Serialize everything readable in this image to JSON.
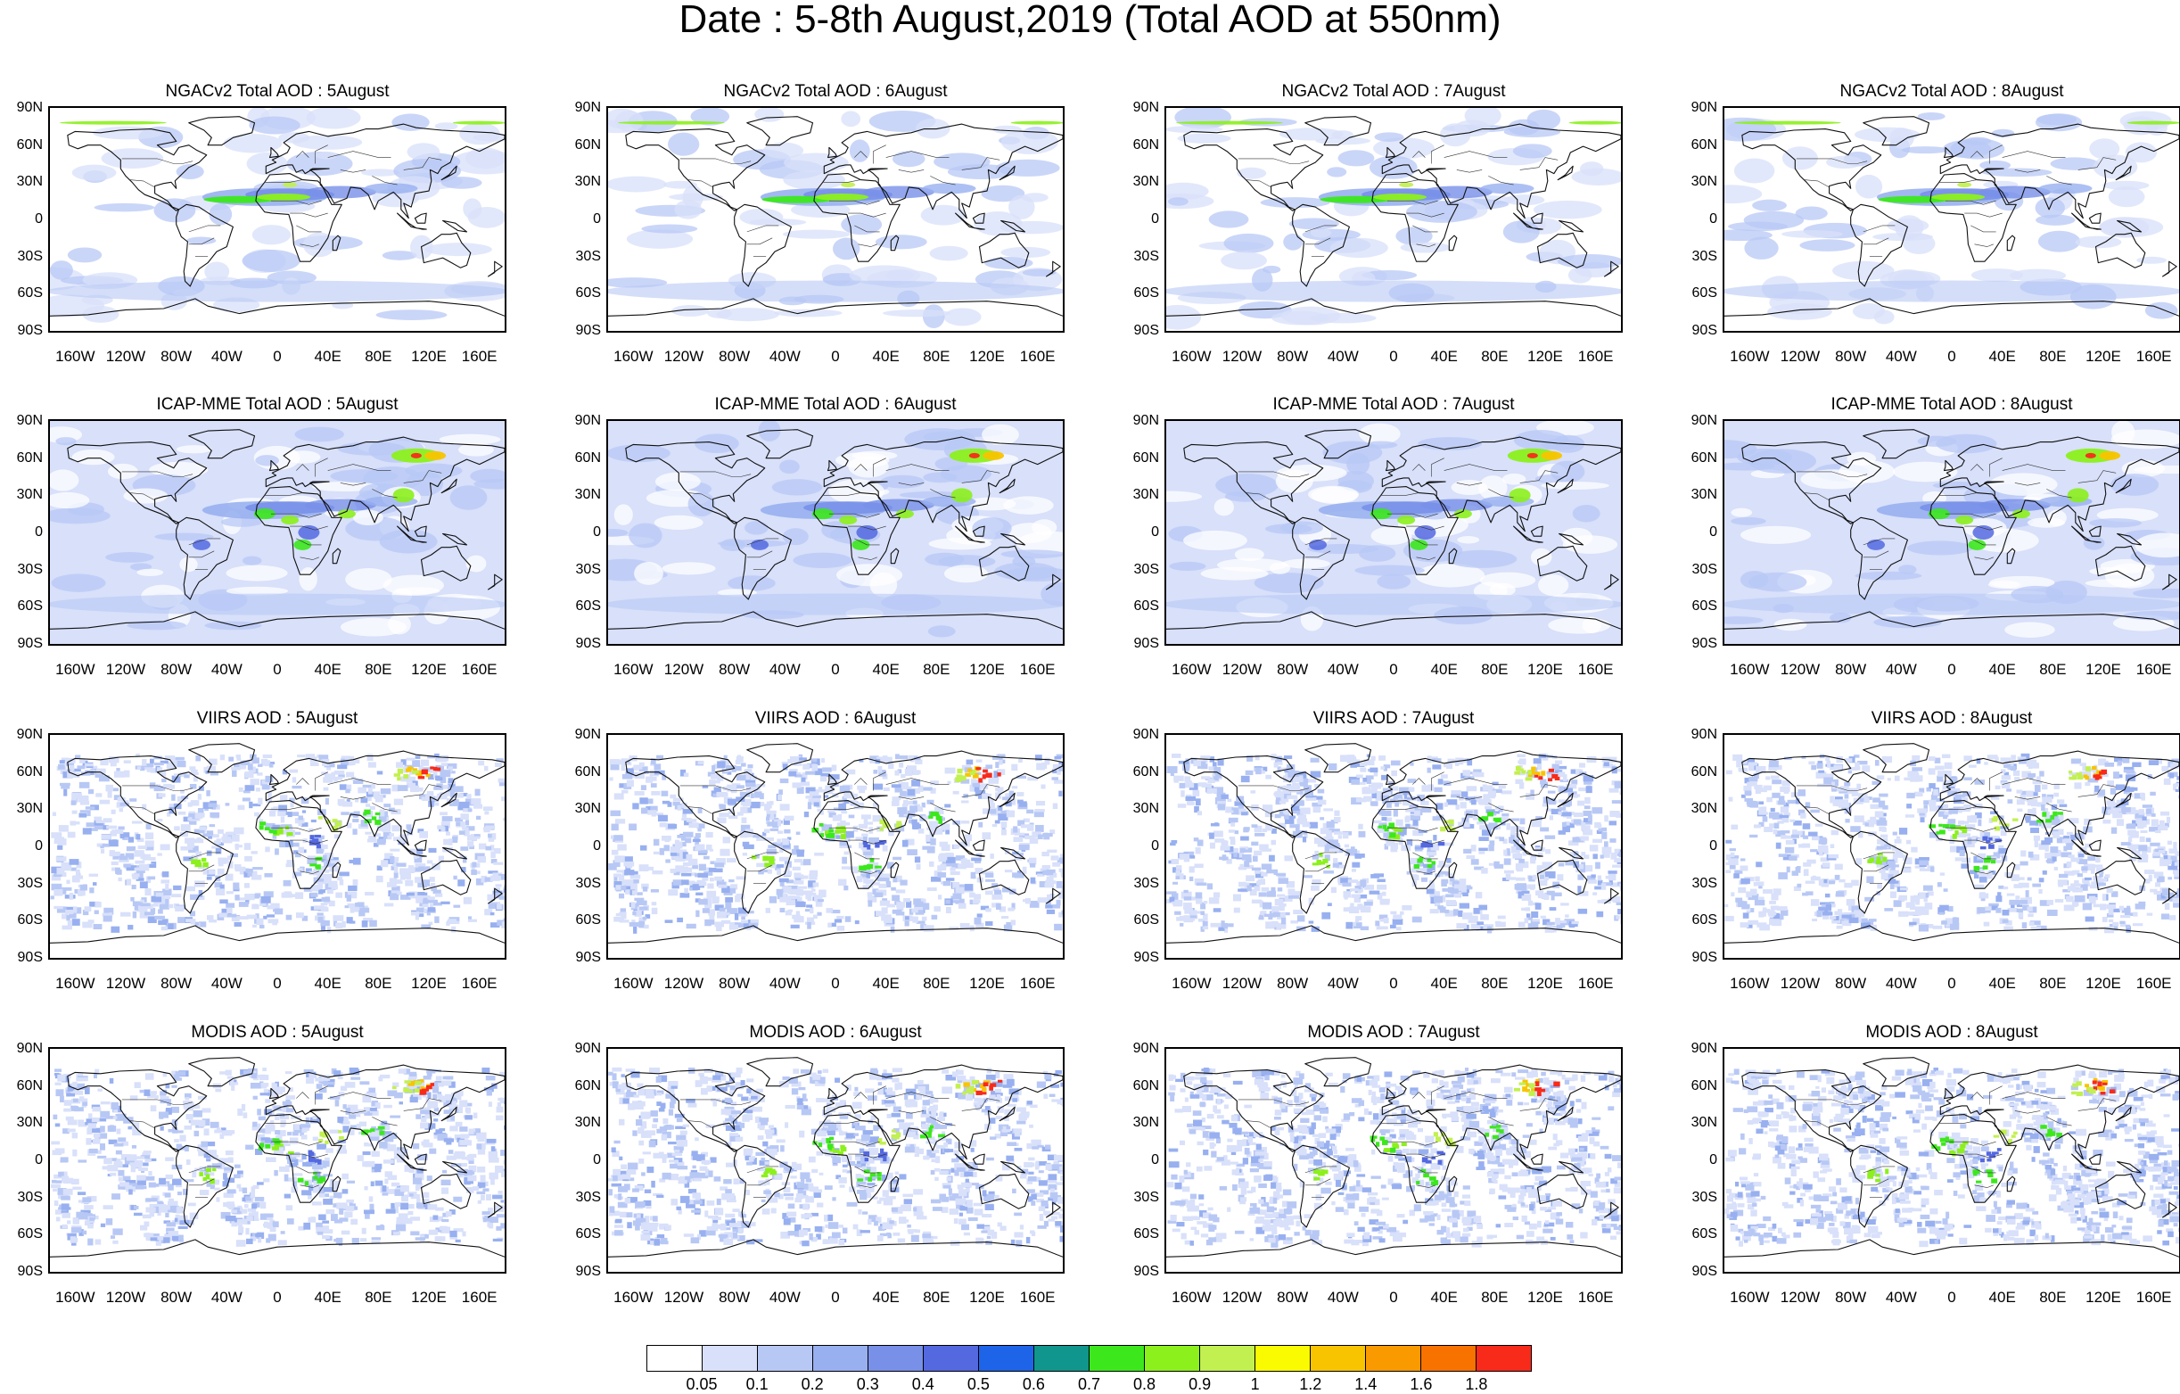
{
  "title": "Date : 5-8th August,2019 (Total AOD at 550nm)",
  "lat_labels": [
    "90N",
    "60N",
    "30N",
    "0",
    "30S",
    "60S",
    "90S"
  ],
  "lon_labels": [
    "160W",
    "120W",
    "80W",
    "40W",
    "0",
    "40E",
    "80E",
    "120E",
    "160E"
  ],
  "panels": [
    {
      "title": "NGACv2 Total AOD : 5August",
      "style": "ngac"
    },
    {
      "title": "NGACv2 Total AOD : 6August",
      "style": "ngac"
    },
    {
      "title": "NGACv2 Total AOD : 7August",
      "style": "ngac"
    },
    {
      "title": "NGACv2 Total AOD : 8August",
      "style": "ngac"
    },
    {
      "title": "ICAP-MME Total AOD : 5August",
      "style": "icap"
    },
    {
      "title": "ICAP-MME Total AOD : 6August",
      "style": "icap"
    },
    {
      "title": "ICAP-MME Total AOD : 7August",
      "style": "icap"
    },
    {
      "title": "ICAP-MME Total AOD : 8August",
      "style": "icap"
    },
    {
      "title": "VIIRS AOD : 5August",
      "style": "sat"
    },
    {
      "title": "VIIRS AOD : 6August",
      "style": "sat"
    },
    {
      "title": "VIIRS AOD : 7August",
      "style": "sat"
    },
    {
      "title": "VIIRS AOD : 8August",
      "style": "sat"
    },
    {
      "title": "MODIS AOD : 5August",
      "style": "sat"
    },
    {
      "title": "MODIS AOD : 6August",
      "style": "sat"
    },
    {
      "title": "MODIS AOD : 7August",
      "style": "sat"
    },
    {
      "title": "MODIS AOD : 8August",
      "style": "sat"
    }
  ],
  "colorbar": {
    "labels": [
      "0.05",
      "0.1",
      "0.2",
      "0.3",
      "0.4",
      "0.5",
      "0.6",
      "0.7",
      "0.8",
      "0.9",
      "1",
      "1.2",
      "1.4",
      "1.6",
      "1.8"
    ],
    "colors": [
      "#ffffff",
      "#d8e0fa",
      "#b8c8f5",
      "#98b0f0",
      "#7890e8",
      "#5468e0",
      "#1e64e8",
      "#10968c",
      "#3ce81c",
      "#8cf01c",
      "#c2f050",
      "#fafa00",
      "#f8c400",
      "#f89a00",
      "#f87200",
      "#f82a1a"
    ]
  }
}
